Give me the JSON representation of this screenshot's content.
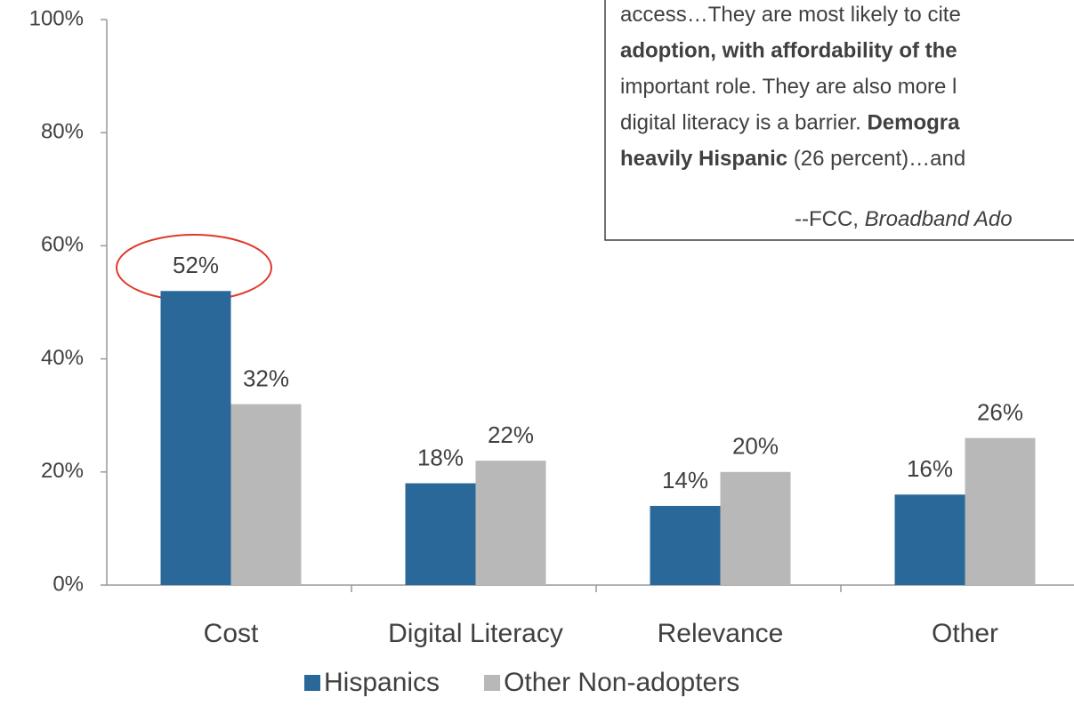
{
  "chart_data": {
    "type": "bar",
    "categories": [
      "Cost",
      "Digital Literacy",
      "Relevance",
      "Other"
    ],
    "series": [
      {
        "name": "Hispanics",
        "color": "#2a6899",
        "values": [
          52,
          18,
          14,
          16
        ],
        "value_labels": [
          "52%",
          "18%",
          "14%",
          "16%"
        ]
      },
      {
        "name": "Other Non-adopters",
        "color": "#b8b8b8",
        "values": [
          32,
          22,
          20,
          26
        ],
        "value_labels": [
          "32%",
          "22%",
          "20%",
          "26%"
        ]
      }
    ],
    "ylim": [
      0,
      100
    ],
    "yticks": [
      {
        "value": 0,
        "label": "0%"
      },
      {
        "value": 20,
        "label": "20%"
      },
      {
        "value": 40,
        "label": "40%"
      },
      {
        "value": 60,
        "label": "60%"
      },
      {
        "value": 80,
        "label": "80%"
      },
      {
        "value": 100,
        "label": "100%"
      }
    ],
    "legend": "bottom",
    "quote": {
      "lines": [
        [
          {
            "text": "access…They are most likely to cite",
            "bold": false
          }
        ],
        [
          {
            "text": "adoption, with affordability of the",
            "bold": true
          }
        ],
        [
          {
            "text": "important role. They are also more l",
            "bold": false
          }
        ],
        [
          {
            "text": "digital literacy is a barrier. ",
            "bold": false
          },
          {
            "text": "Demogra",
            "bold": true
          }
        ],
        [
          {
            "text": "heavily Hispanic",
            "bold": true
          },
          {
            "text": " (26 percent)…and",
            "bold": false
          }
        ]
      ],
      "attribution": [
        {
          "text": "--FCC, ",
          "italic": false
        },
        {
          "text": "Broadband Ado",
          "italic": true
        }
      ]
    }
  }
}
